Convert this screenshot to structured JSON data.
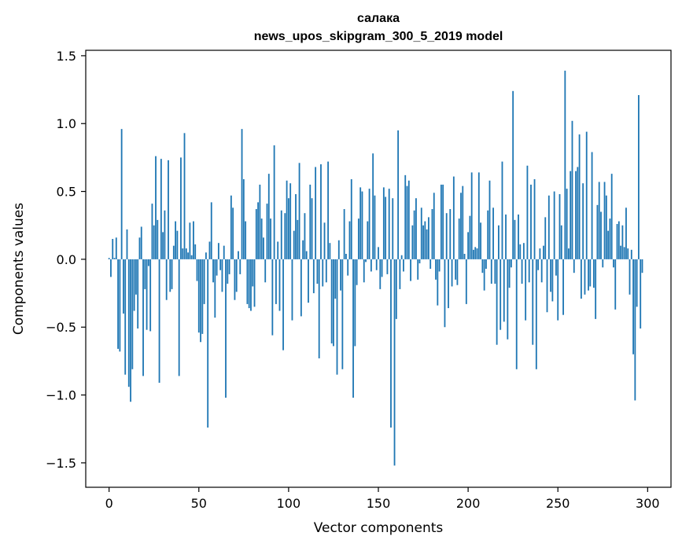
{
  "chart_data": {
    "type": "bar",
    "title": "салака",
    "subtitle": "news_upos_skipgram_300_5_2019 model",
    "xlabel": "Vector components",
    "ylabel": "Components values",
    "xlim": [
      -13,
      313
    ],
    "ylim": [
      -1.68,
      1.54
    ],
    "x_ticks": [
      0,
      50,
      100,
      150,
      200,
      250,
      300
    ],
    "x_tick_labels": [
      "0",
      "50",
      "100",
      "150",
      "200",
      "250",
      "300"
    ],
    "y_ticks": [
      -1.5,
      -1.0,
      -0.5,
      0.0,
      0.5,
      1.0,
      1.5
    ],
    "y_tick_labels": [
      "−1.5",
      "−1.0",
      "−0.5",
      "0.0",
      "0.5",
      "1.0",
      "1.5"
    ],
    "bar_color": "#1f77b4",
    "grid": false,
    "x": "0..299",
    "values": [
      0.01,
      -0.13,
      0.15,
      0.01,
      0.16,
      -0.66,
      -0.68,
      0.96,
      -0.4,
      -0.85,
      0.22,
      -0.94,
      -1.05,
      -0.81,
      -0.38,
      -0.26,
      -0.51,
      0.16,
      0.24,
      -0.86,
      -0.22,
      -0.52,
      -0.05,
      -0.53,
      0.41,
      0.25,
      0.76,
      0.29,
      -0.91,
      0.74,
      0.2,
      0.36,
      -0.3,
      0.73,
      -0.24,
      -0.22,
      0.1,
      0.28,
      0.21,
      -0.86,
      0.75,
      0.08,
      0.93,
      0.08,
      0.05,
      0.27,
      0.03,
      0.28,
      0.11,
      -0.16,
      -0.54,
      -0.61,
      -0.55,
      -0.33,
      0.05,
      -1.24,
      0.13,
      0.42,
      -0.17,
      -0.43,
      -0.12,
      0.12,
      -0.08,
      -0.24,
      0.1,
      -1.02,
      -0.18,
      -0.11,
      0.47,
      0.38,
      -0.3,
      -0.24,
      0.06,
      -0.11,
      0.96,
      0.59,
      0.28,
      -0.33,
      -0.36,
      -0.38,
      -0.2,
      -0.35,
      0.37,
      0.42,
      0.55,
      0.3,
      0.16,
      -0.17,
      0.41,
      0.63,
      0.3,
      -0.56,
      0.84,
      -0.33,
      0.13,
      -0.38,
      0.36,
      -0.67,
      0.34,
      0.58,
      0.45,
      0.56,
      -0.45,
      0.21,
      0.48,
      0.29,
      0.71,
      -0.42,
      0.14,
      0.34,
      0.06,
      -0.32,
      0.55,
      0.45,
      -0.25,
      0.68,
      -0.18,
      -0.73,
      0.7,
      -0.2,
      0.27,
      -0.17,
      0.72,
      0.12,
      -0.62,
      -0.64,
      -0.29,
      -0.85,
      0.14,
      -0.23,
      -0.81,
      0.37,
      0.04,
      -0.12,
      0.28,
      0.59,
      -1.02,
      -0.64,
      -0.19,
      0.3,
      0.53,
      0.5,
      -0.17,
      -0.02,
      0.28,
      0.52,
      -0.09,
      0.78,
      0.47,
      -0.08,
      0.09,
      -0.22,
      -0.13,
      0.53,
      0.46,
      -0.11,
      0.52,
      -1.24,
      0.45,
      -1.52,
      -0.44,
      0.95,
      -0.22,
      0.03,
      -0.09,
      0.62,
      0.54,
      0.58,
      -0.16,
      0.25,
      0.36,
      0.45,
      -0.15,
      -0.03,
      0.38,
      0.25,
      0.28,
      0.22,
      0.31,
      -0.07,
      0.37,
      0.49,
      -0.15,
      -0.34,
      -0.09,
      0.55,
      0.55,
      -0.5,
      0.34,
      -0.36,
      0.37,
      -0.2,
      0.61,
      -0.15,
      -0.19,
      0.3,
      0.49,
      0.54,
      0.04,
      -0.33,
      0.2,
      0.32,
      0.64,
      0.07,
      0.09,
      0.08,
      0.64,
      0.27,
      -0.1,
      -0.23,
      -0.07,
      0.36,
      0.58,
      -0.18,
      0.38,
      -0.18,
      -0.63,
      0.25,
      -0.52,
      0.72,
      -0.46,
      0.33,
      -0.59,
      -0.21,
      -0.06,
      1.24,
      0.29,
      -0.81,
      0.33,
      0.11,
      -0.18,
      0.12,
      -0.45,
      0.69,
      -0.17,
      0.55,
      -0.63,
      0.59,
      -0.81,
      -0.08,
      0.08,
      -0.17,
      0.1,
      0.31,
      -0.39,
      0.47,
      -0.24,
      -0.31,
      0.5,
      -0.12,
      -0.45,
      0.48,
      0.25,
      -0.41,
      1.39,
      0.52,
      0.08,
      0.65,
      1.02,
      -0.1,
      0.65,
      0.68,
      0.92,
      -0.29,
      0.56,
      -0.26,
      0.94,
      -0.23,
      -0.2,
      0.79,
      -0.21,
      -0.44,
      0.4,
      0.57,
      0.35,
      -0.06,
      0.57,
      0.47,
      0.21,
      0.3,
      0.63,
      -0.06,
      -0.37,
      0.26,
      0.28,
      0.1,
      0.25,
      0.09,
      0.38,
      0.08,
      -0.26,
      0.07,
      -0.7,
      -1.04,
      -0.35,
      1.21,
      -0.51,
      -0.1
    ]
  }
}
